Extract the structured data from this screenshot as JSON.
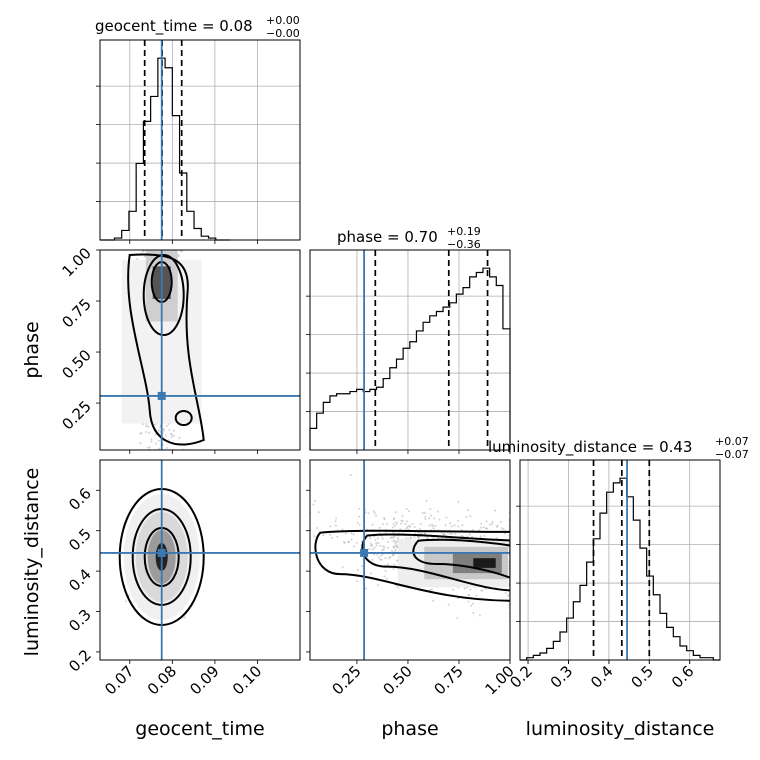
{
  "chart_data": {
    "type": "corner",
    "parameters": [
      "geocent_time",
      "phase",
      "luminosity_distance"
    ],
    "axis_labels": {
      "geocent_time": "geocent_time",
      "phase": "phase",
      "luminosity_distance": "luminosity_distance"
    },
    "ranges": {
      "geocent_time": [
        0.063,
        0.11
      ],
      "phase": [
        0.02,
        1.0
      ],
      "luminosity_distance": [
        0.18,
        0.675
      ]
    },
    "ticks": {
      "geocent_time": [
        "0.07",
        "0.08",
        "0.09",
        "0.10"
      ],
      "phase": [
        "0.25",
        "0.50",
        "0.75",
        "1.00"
      ],
      "luminosity_distance": [
        "0.2",
        "0.3",
        "0.4",
        "0.5",
        "0.6"
      ]
    },
    "truths": {
      "geocent_time": 0.0775,
      "phase": 0.285,
      "luminosity_distance": 0.445
    },
    "summaries": [
      {
        "param": "geocent_time",
        "name": "geocent_time",
        "median": "0.08",
        "plus": "+0.00",
        "minus": "−0.00",
        "quantiles": [
          0.0735,
          0.0776,
          0.0822
        ]
      },
      {
        "param": "phase",
        "name": "phase",
        "median": "0.70",
        "plus": "+0.19",
        "minus": "−0.36",
        "quantiles": [
          0.34,
          0.7,
          0.89
        ]
      },
      {
        "param": "luminosity_distance",
        "name": "luminosity_distance",
        "median": "0.43",
        "plus": "+0.07",
        "minus": "−0.07",
        "quantiles": [
          0.362,
          0.432,
          0.5
        ]
      }
    ],
    "histograms": {
      "geocent_time": {
        "edges": [
          0.063,
          0.0647,
          0.0664,
          0.0681,
          0.0698,
          0.0715,
          0.0732,
          0.0749,
          0.0766,
          0.0783,
          0.08,
          0.0817,
          0.0834,
          0.0851,
          0.0868,
          0.0885,
          0.0902,
          0.0919,
          0.0936
        ],
        "counts": [
          0,
          0,
          1,
          5,
          15,
          40,
          62,
          75,
          95,
          90,
          65,
          35,
          15,
          6,
          2,
          1,
          0,
          0
        ]
      },
      "phase": {
        "edges": [
          0.02,
          0.0526,
          0.0852,
          0.1178,
          0.1504,
          0.183,
          0.2156,
          0.2482,
          0.2808,
          0.3134,
          0.346,
          0.3786,
          0.4112,
          0.4438,
          0.4764,
          0.509,
          0.5416,
          0.5742,
          0.6068,
          0.6394,
          0.672,
          0.7046,
          0.7372,
          0.7698,
          0.8024,
          0.835,
          0.8676,
          0.9002,
          0.9328,
          0.9654,
          1.0
        ],
        "counts": [
          10,
          17,
          22,
          25,
          26,
          26,
          27,
          28,
          27,
          28,
          29,
          33,
          38,
          42,
          47,
          50,
          55,
          59,
          62,
          64,
          66,
          68,
          72,
          75,
          80,
          82,
          84,
          80,
          76,
          56
        ]
      },
      "luminosity_distance": {
        "edges": [
          0.18,
          0.1965,
          0.213,
          0.2295,
          0.246,
          0.2625,
          0.279,
          0.2955,
          0.312,
          0.3285,
          0.345,
          0.3615,
          0.378,
          0.3945,
          0.411,
          0.4275,
          0.444,
          0.4605,
          0.477,
          0.4935,
          0.51,
          0.5265,
          0.543,
          0.5595,
          0.576,
          0.5925,
          0.609,
          0.6255,
          0.642,
          0.6585,
          0.675
        ],
        "counts": [
          0,
          1,
          2,
          3,
          5,
          8,
          12,
          18,
          25,
          32,
          42,
          52,
          63,
          72,
          76,
          78,
          70,
          60,
          48,
          36,
          28,
          20,
          14,
          10,
          6,
          4,
          2,
          1,
          1,
          0
        ]
      }
    },
    "contours_2d": [
      {
        "x": "geocent_time",
        "y": "phase",
        "shape": "elongated",
        "levels": 3
      },
      {
        "x": "geocent_time",
        "y": "luminosity_distance",
        "shape": "ellipse",
        "levels": 3
      },
      {
        "x": "phase",
        "y": "luminosity_distance",
        "shape": "banana",
        "levels": 3
      }
    ]
  }
}
